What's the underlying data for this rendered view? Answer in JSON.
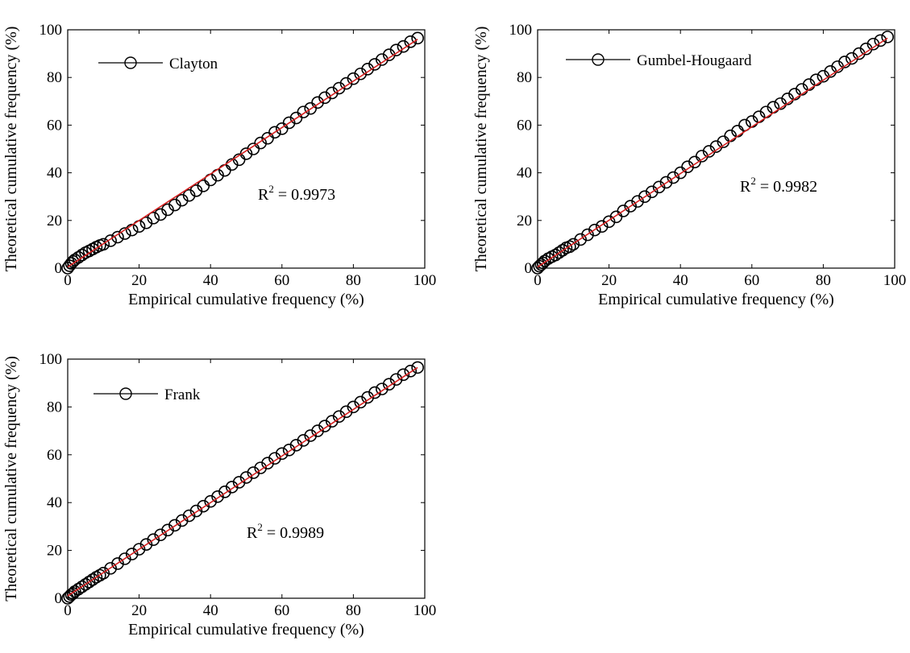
{
  "chart_data": [
    {
      "type": "scatter",
      "panel": "top-left",
      "xlabel": "Empirical cumulative frequency (%)",
      "ylabel": "Theoretical cumulative frequency (%)",
      "xlim": [
        0,
        100
      ],
      "ylim": [
        0,
        100
      ],
      "xticks": [
        "0",
        "20",
        "40",
        "60",
        "80",
        "100"
      ],
      "yticks": [
        "0",
        "20",
        "40",
        "60",
        "80",
        "100"
      ],
      "grid": false,
      "legend": {
        "label": "Clayton",
        "position": "top-left",
        "marker": "circle-line"
      },
      "annotation": {
        "prefix": "R",
        "sup": "2",
        "text": " = 0.9973"
      },
      "fit_line": {
        "color": "#d62020",
        "x": [
          0,
          98
        ],
        "y": [
          0.5,
          96
        ]
      },
      "series": [
        {
          "name": "Clayton",
          "marker_color": "#000000",
          "x": [
            0,
            0.5,
            1,
            1.5,
            2,
            3,
            4,
            5,
            6,
            7,
            8,
            9,
            10,
            12,
            14,
            16,
            18,
            20,
            22,
            24,
            26,
            28,
            30,
            32,
            34,
            36,
            38,
            40,
            42,
            44,
            46,
            48,
            50,
            52,
            54,
            56,
            58,
            60,
            62,
            64,
            66,
            68,
            70,
            72,
            74,
            76,
            78,
            80,
            82,
            84,
            86,
            88,
            90,
            92,
            94,
            96,
            98
          ],
          "y": [
            0,
            1,
            2,
            2.8,
            3.5,
            4.5,
            5.5,
            6.5,
            7.2,
            8,
            8.8,
            9.5,
            10,
            11.5,
            13,
            14.5,
            16,
            17.5,
            19,
            21,
            22.5,
            24.5,
            26.5,
            28.5,
            30.5,
            32.5,
            34.5,
            37,
            39,
            41,
            43.5,
            45.5,
            48,
            50,
            52.5,
            54.5,
            57,
            58.5,
            61,
            63,
            65.5,
            67,
            69.5,
            71.5,
            73.5,
            75.5,
            77.5,
            79.5,
            81.5,
            83.5,
            85.5,
            87.5,
            89.5,
            91.5,
            93,
            95,
            96.5
          ]
        }
      ]
    },
    {
      "type": "scatter",
      "panel": "top-right",
      "xlabel": "Empirical cumulative frequency (%)",
      "ylabel": "Theoretical cumulative frequency (%)",
      "xlim": [
        0,
        100
      ],
      "ylim": [
        0,
        100
      ],
      "xticks": [
        "0",
        "20",
        "40",
        "60",
        "80",
        "100"
      ],
      "yticks": [
        "0",
        "20",
        "40",
        "60",
        "80",
        "100"
      ],
      "grid": false,
      "legend": {
        "label": "Gumbel-Hougaard",
        "position": "top-left",
        "marker": "circle-line"
      },
      "annotation": {
        "prefix": "R",
        "sup": "2",
        "text": " = 0.9982"
      },
      "fit_line": {
        "color": "#d62020",
        "x": [
          0,
          98
        ],
        "y": [
          0.5,
          96.5
        ]
      },
      "series": [
        {
          "name": "Gumbel-Hougaard",
          "marker_color": "#000000",
          "x": [
            0,
            0.5,
            1,
            1.5,
            2,
            3,
            4,
            5,
            6,
            7,
            8,
            9,
            10,
            12,
            14,
            16,
            18,
            20,
            22,
            24,
            26,
            28,
            30,
            32,
            34,
            36,
            38,
            40,
            42,
            44,
            46,
            48,
            50,
            52,
            54,
            56,
            58,
            60,
            62,
            64,
            66,
            68,
            70,
            72,
            74,
            76,
            78,
            80,
            82,
            84,
            86,
            88,
            90,
            92,
            94,
            96,
            98
          ],
          "y": [
            0,
            0.8,
            1.5,
            2.2,
            3,
            4,
            4.8,
            5.5,
            6.5,
            7.5,
            8.5,
            9,
            10,
            12,
            14,
            16,
            17.5,
            19.5,
            21.5,
            24,
            26,
            28,
            30,
            32,
            34,
            36,
            38,
            40,
            42.5,
            44.5,
            47,
            49,
            51,
            53,
            55.5,
            57.5,
            60,
            61.5,
            63.5,
            65.5,
            67.5,
            69,
            71,
            73,
            75,
            77,
            79,
            80.5,
            82.5,
            84.5,
            86.5,
            88,
            90,
            92,
            94,
            95.5,
            97
          ]
        }
      ]
    },
    {
      "type": "scatter",
      "panel": "bottom-left",
      "xlabel": "Empirical cumulative frequency (%)",
      "ylabel": "Theoretical cumulative frequency (%)",
      "xlim": [
        0,
        100
      ],
      "ylim": [
        0,
        100
      ],
      "xticks": [
        "0",
        "20",
        "40",
        "60",
        "80",
        "100"
      ],
      "yticks": [
        "0",
        "20",
        "40",
        "60",
        "80",
        "100"
      ],
      "grid": false,
      "legend": {
        "label": "Frank",
        "position": "top-left",
        "marker": "circle-line"
      },
      "annotation": {
        "prefix": "R",
        "sup": "2",
        "text": " = 0.9989"
      },
      "fit_line": {
        "color": "#d62020",
        "x": [
          0,
          98
        ],
        "y": [
          1,
          96.5
        ]
      },
      "series": [
        {
          "name": "Frank",
          "marker_color": "#000000",
          "x": [
            0,
            0.5,
            1,
            1.5,
            2,
            3,
            4,
            5,
            6,
            7,
            8,
            9,
            10,
            12,
            14,
            16,
            18,
            20,
            22,
            24,
            26,
            28,
            30,
            32,
            34,
            36,
            38,
            40,
            42,
            44,
            46,
            48,
            50,
            52,
            54,
            56,
            58,
            60,
            62,
            64,
            66,
            68,
            70,
            72,
            74,
            76,
            78,
            80,
            82,
            84,
            86,
            88,
            90,
            92,
            94,
            96,
            98
          ],
          "y": [
            0,
            0.7,
            1.5,
            2,
            2.8,
            3.8,
            4.8,
            5.8,
            6.8,
            7.8,
            8.8,
            9.6,
            10.5,
            12.5,
            14.5,
            16.5,
            18.5,
            20.5,
            22.5,
            24.5,
            26.5,
            28.5,
            30.5,
            32.5,
            34.5,
            36.5,
            38.5,
            40.5,
            42.5,
            44.5,
            46.5,
            48.5,
            50.5,
            52.5,
            54.5,
            56.5,
            58.5,
            60.5,
            62,
            64,
            66,
            68,
            70,
            72,
            74,
            76,
            78,
            80,
            82,
            84,
            86,
            87.5,
            89.5,
            91.5,
            93.5,
            95,
            96.5
          ]
        }
      ]
    }
  ]
}
